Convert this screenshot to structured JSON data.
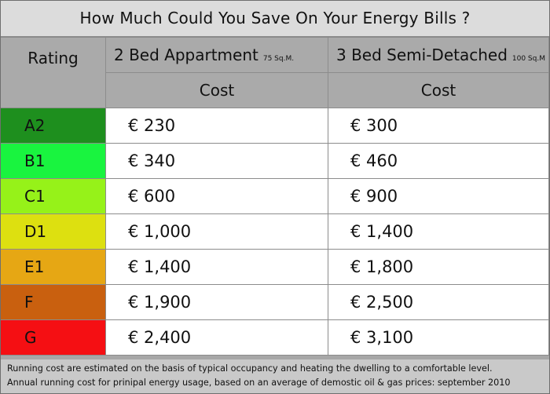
{
  "chart_data": {
    "type": "table",
    "title": "How Much Could You Save On Your Energy Bills ?",
    "header": {
      "rating": "Rating",
      "columns": [
        {
          "name": "2 Bed Appartment",
          "size": "75 Sq.M."
        },
        {
          "name": "3 Bed Semi-Detached",
          "size": "100 Sq.M"
        }
      ],
      "subheader": "Cost"
    },
    "rows": [
      {
        "rating": "A2",
        "color": "#1e8f1e",
        "values": [
          "€ 230",
          "€ 300"
        ]
      },
      {
        "rating": "B1",
        "color": "#19f43f",
        "values": [
          "€ 340",
          "€ 460"
        ]
      },
      {
        "rating": "C1",
        "color": "#96f219",
        "values": [
          "€ 600",
          "€ 900"
        ]
      },
      {
        "rating": "D1",
        "color": "#dde010",
        "values": [
          "€ 1,000",
          "€ 1,400"
        ]
      },
      {
        "rating": "E1",
        "color": "#e6a714",
        "values": [
          "€ 1,400",
          "€ 1,800"
        ]
      },
      {
        "rating": "F",
        "color": "#c9600f",
        "values": [
          "€ 1,900",
          "€ 2,500"
        ]
      },
      {
        "rating": "G",
        "color": "#f50f13",
        "values": [
          "€ 2,400",
          "€ 3,100"
        ]
      }
    ],
    "footnote": [
      "Running cost are estimated on the basis of typical occupancy and heating the dwelling to a comfortable level.",
      "Annual running cost for prinipal energy usage, based on an average of demostic oil & gas prices: september 2010"
    ]
  }
}
